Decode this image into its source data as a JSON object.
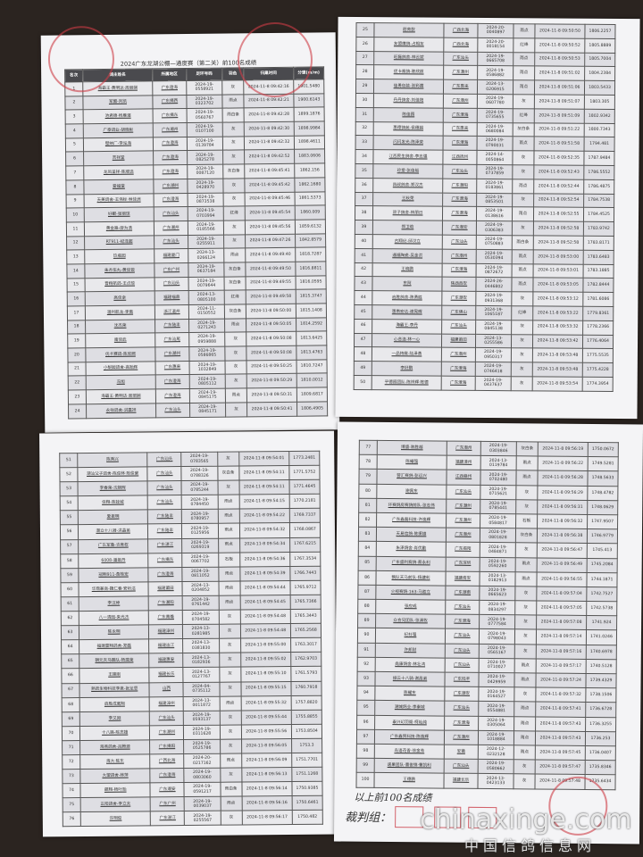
{
  "title": "2024广东龙湖公棚—通度赛（第二关）前100名成绩",
  "columns": [
    "名次",
    "鸽主姓名",
    "所属地区",
    "足环号码",
    "羽色",
    "归巢时间",
    "分速(m/m)"
  ],
  "pages": [
    {
      "rows": [
        [
          "1",
          "海霸王·黄明达·周丽娴",
          "广东澄海",
          "2024-19-0558921",
          "灰",
          "2024-11-8 09:42:16",
          "1901.5480"
        ],
        [
          "2",
          "军盟-刘凯",
          "广东揭西",
          "2024-19-0323702",
          "雨点",
          "2024-11-8 09:42:21",
          "1900.6143"
        ],
        [
          "3",
          "池君德·杨雁湄",
          "广东揭东",
          "2024-19-0560767",
          "雨白条",
          "2024-11-8 09:42:28",
          "1899.1876"
        ],
        [
          "4",
          "广泰鸽业-胡晓彬",
          "广东潮州",
          "2024-19-0107100",
          "灰",
          "2024-11-8 09:42:30",
          "1898.9984"
        ],
        [
          "5",
          "壁纳厂-李泓海",
          "广东澄海",
          "2024-19-0139784",
          "灰",
          "2024-11-8 09:42:32",
          "1898.4611"
        ],
        [
          "6",
          "吉祥堂",
          "广东澄海",
          "2024-19-0825278",
          "灰",
          "2024-11-8 09:42:52",
          "1883.0606"
        ],
        [
          "7",
          "龙凤呈祥-陈顺选",
          "广东澄海",
          "2024-19-0087120",
          "灰白条",
          "2024-11-8 09:45:41",
          "1862.156"
        ],
        [
          "8",
          "爱福堂",
          "广东潮州",
          "2024-19-0428970",
          "灰",
          "2024-11-8 09:45:42",
          "1862.1680"
        ],
        [
          "9",
          "天美鸽舍-王伟标·林佳洲",
          "广东澄海",
          "2024-19-0873538",
          "灰",
          "2024-11-8 09:45:46",
          "1861.5373"
        ],
        [
          "10",
          "好鲲-张丽琼",
          "广东汕头",
          "2024-19-0703994",
          "红绛",
          "2024-11-8 09:45:54",
          "1860.009"
        ],
        [
          "11",
          "黄金路-廖为浩",
          "广东潮州",
          "2024-19-0185566",
          "灰",
          "2024-11-8 09:45:56",
          "1859.6132"
        ],
        [
          "12",
          "RT911-纪泽超",
          "广东汕头",
          "2024-19-0255911",
          "灰",
          "2024-11-8 09:47:26",
          "1842.8579"
        ],
        [
          "13",
          "玖瓶园",
          "福建厦门",
          "2024-13-0266124",
          "雨点",
          "2024-11-8 09:49:40",
          "1818.7287"
        ],
        [
          "14",
          "朱杰伍丸-黄佳锐",
          "广东广州",
          "2024-19-0637184",
          "灰白条",
          "2024-11-8 09:49:50",
          "1816.8811"
        ],
        [
          "15",
          "晋翔航鸽-王贞琼",
          "广东汕头",
          "2024-19-0079644",
          "灰白条",
          "2024-11-8 09:49:55",
          "1816.0595"
        ],
        [
          "16",
          "高佳幸",
          "福建福鼎",
          "2024-13-0805100",
          "红绛",
          "2024-11-8 09:49:58",
          "1815.3747"
        ],
        [
          "17",
          "温州航龙-季傲",
          "浙江温州",
          "2024-11-0150552",
          "灰白条",
          "2024-11-8 09:50:00",
          "1815.1408"
        ],
        [
          "18",
          "沈杰荣",
          "广东陆丰",
          "2024-19-0271243",
          "雨点",
          "2024-11-8 09:50:05",
          "1814.2592"
        ],
        [
          "19",
          "南佳武",
          "广东汕尾",
          "2024-19-0959888",
          "灰",
          "2024-11-8 09:50:08",
          "1813.6425"
        ],
        [
          "20",
          "优卡赛鸽-陈欣照",
          "广东潮州",
          "2024-19-0586865",
          "灰",
          "2024-11-8 09:50:08",
          "1813.4763"
        ],
        [
          "21",
          "小梨园鸽舍-高贻辉",
          "广东惠来",
          "2024-19-1032849",
          "灰",
          "2024-11-8 09:50:25",
          "1810.7247"
        ],
        [
          "22",
          "冯旭",
          "广东澄海",
          "2024-19-0805112",
          "灰",
          "2024-11-8 09:50:29",
          "1810.0012"
        ],
        [
          "23",
          "海霸王·黄明达·周丽娴",
          "广东澄海",
          "2024-19-0845175",
          "雨点",
          "2024-11-8 09:50:31",
          "1809.6817"
        ],
        [
          "24",
          "永祥鸽舍-洪嘉祥",
          "广东汕头",
          "2024-19-0845171",
          "灰",
          "2024-11-8 09:50:41",
          "1806.4905"
        ]
      ]
    },
    {
      "rows": [
        [
          "25",
          "莊育欽",
          "广西北海",
          "2024-20-0040897",
          "雨点",
          "2024-11-8 09:50:50",
          "1806.2257"
        ],
        [
          "26",
          "友盟鹰鸽-占相友",
          "广西北海",
          "2024-20-0018154",
          "红绛",
          "2024-11-8 09:50:52",
          "1805.8889"
        ],
        [
          "27",
          "旺磊鸽舍-林云斌",
          "广东汕头",
          "2024-19-0665708",
          "雨点",
          "2024-11-8 09:50:53",
          "1805.7004"
        ],
        [
          "28",
          "优卡赛鸽-陈欣照",
          "广东潮州",
          "2024-19-0586882",
          "雨点",
          "2024-11-8 09:51:02",
          "1804.2384"
        ],
        [
          "29",
          "佳勇包装-张彩霞",
          "广东惠来",
          "2024-13-0206915",
          "雨点",
          "2024-11-8 09:51:06",
          "1803.5433"
        ],
        [
          "30",
          "丹丹鸽舍-刘佳阳",
          "广东潮州",
          "2024-19-0607780",
          "灰",
          "2024-11-8 09:51:07",
          "1803.305"
        ],
        [
          "31",
          "陈佳园",
          "广东澄海",
          "2024-19-0735655",
          "红绛",
          "2024-11-8 09:51:09",
          "1802.9342"
        ],
        [
          "32",
          "惠德鸽苑-侯穗娟",
          "广东惠来",
          "2024-19-0680084",
          "灰白条",
          "2024-11-8 09:51:22",
          "1800.7343"
        ],
        [
          "33",
          "闪闪发光-陈泽荣",
          "广东澄海",
          "2024-19-0790031",
          "雨点",
          "2024-11-8 09:51:58",
          "1794.481"
        ],
        [
          "34",
          "江西民生鸽舍-李志强",
          "江西抚州",
          "2024-14-0050864",
          "灰",
          "2024-11-8 09:52:35",
          "1787.9484"
        ],
        [
          "35",
          "珍爱·张佳裕",
          "广东汕头",
          "2024-19-0737859",
          "灰",
          "2024-11-8 09:52:43",
          "1786.5552"
        ],
        [
          "36",
          "四叔鸽舍-郑汉杰",
          "广东潮阳",
          "2024-19-0183861",
          "雨点",
          "2024-11-8 09:52:44",
          "1786.4875"
        ],
        [
          "37",
          "王秋荣",
          "广东澄海",
          "2024-19-0853501",
          "灰",
          "2024-11-8 09:52:54",
          "1784.7538"
        ],
        [
          "38",
          "双子鸽舍-林朋日",
          "广东澄海",
          "2024-19-0138616",
          "雨点",
          "2024-11-8 09:52:55",
          "1784.4525"
        ],
        [
          "39",
          "郑卫晗",
          "广东潮安",
          "2024-19-0306383",
          "灰",
          "2024-11-8 09:52:58",
          "1783.9742"
        ],
        [
          "40",
          "古翔纪-邱汉立",
          "广东汕头",
          "2024-19-0750883",
          "雨白条",
          "2024-11-8 09:52:58",
          "1783.8171"
        ],
        [
          "41",
          "通福陶瓷-吴金洪",
          "广东潮州",
          "2024-19-0530394",
          "雨点",
          "2024-11-8 09:53:00",
          "1783.6483"
        ],
        [
          "42",
          "王晓鹏",
          "广东澄海",
          "2024-19-0872672",
          "雨点",
          "2024-11-8 09:53:01",
          "1783.1885"
        ],
        [
          "43",
          "东阿",
          "陕西西安",
          "2024-26-0446802",
          "雨点",
          "2024-11-8 09:53:05",
          "1782.8444"
        ],
        [
          "44",
          "启胜鸽舍-陈勇胜",
          "广东潮安",
          "2024-19-0931368",
          "灰",
          "2024-11-8 09:53:12",
          "1781.6086"
        ],
        [
          "45",
          "惠南宏达-谢晃辉",
          "广东佛山",
          "2024-19-1065187",
          "红绛",
          "2024-11-8 09:53:22",
          "1779.8361"
        ],
        [
          "46",
          "海霸王-李丹",
          "广东汕头",
          "2024-19-0845138",
          "灰",
          "2024-11-8 09:53:32",
          "1778.2366"
        ],
        [
          "47",
          "心合连-林一心",
          "福建莆田",
          "2024-13-0255586",
          "灰",
          "2024-11-8 09:53:42",
          "1776.4064"
        ],
        [
          "48",
          "一品特赛-陆泽勇",
          "广东潮州",
          "2024-19-0950317",
          "灰",
          "2024-11-8 09:53:48",
          "1775.5535"
        ],
        [
          "49",
          "李好鹏",
          "广东澄海",
          "2024-19-0746418",
          "灰",
          "2024-11-8 09:53:48",
          "1775.4228"
        ],
        [
          "50",
          "平德园团队-陈祥辉·陈德",
          "广东澄海",
          "2024-19-0437637",
          "灰",
          "2024-11-8 09:53:54",
          "1774.3954"
        ]
      ]
    },
    {
      "rows": [
        [
          "51",
          "陈秀兴",
          "广东汕头",
          "2024-19-0783565",
          "灰",
          "2024-11-8 09:54:01",
          "1773.2481"
        ],
        [
          "52",
          "潮汕父子鸽舍-陈俊林·陈俊豪",
          "广东汕头",
          "2024-19-0788326",
          "灰白条",
          "2024-11-8 09:54:11",
          "1771.5752"
        ],
        [
          "53",
          "李春荣-沈钢辉",
          "广东汕头",
          "2024-19-0785244",
          "灰",
          "2024-11-8 09:54:11",
          "1771.4645"
        ],
        [
          "54",
          "佳翔-陈铨城",
          "广东汕头",
          "2024-19-0784450",
          "雨点",
          "2024-11-8 09:54:15",
          "1770.2181"
        ],
        [
          "55",
          "爱振明",
          "广东陆丰",
          "2024-19-0780957",
          "雨点",
          "2024-11-8 09:54:22",
          "1769.7337"
        ],
        [
          "56",
          "潮立十八骑-洪晶弟",
          "广东陆丰",
          "2024-19-0125956",
          "雨点",
          "2024-11-8 09:54:32",
          "1768.0867"
        ],
        [
          "57",
          "广东军鲁-许育权",
          "广东湛江",
          "2024-19-0269319",
          "雨点",
          "2024-11-8 09:54:34",
          "1767.6215"
        ],
        [
          "58",
          "6008-潘振丹",
          "广东揭东",
          "2024-19-0067702",
          "石板",
          "2024-11-8 09:54:36",
          "1767.3534"
        ],
        [
          "59",
          "冠翔911-詹桂宏",
          "广东澄海",
          "2024-19-0811052",
          "雨点",
          "2024-11-8 09:54:39",
          "1766.7443"
        ],
        [
          "60",
          "华鼎兼商-魏仁春·安圻沽",
          "福建莆田",
          "2024-13-0204852",
          "雨点",
          "2024-11-8 09:54:44",
          "1765.9712"
        ],
        [
          "61",
          "李汉坤",
          "广东潮阳",
          "2024-19-0761442",
          "雨点",
          "2024-11-8 09:54:45",
          "1765.7366"
        ],
        [
          "62",
          "八一清园-朱光杰",
          "广东南雄",
          "2024-19-0704582",
          "灰",
          "2024-11-8 09:54:48",
          "1765.3443"
        ],
        [
          "63",
          "陈永明",
          "福建漳州",
          "2024-13-0281985",
          "灰",
          "2024-11-8 09:54:48",
          "1765.2568"
        ],
        [
          "64",
          "福建雷翔鸽舍-郑磊",
          "福建连江",
          "2024-13-0381830",
          "灰",
          "2024-11-8 09:55:00",
          "1763.3017"
        ],
        [
          "65",
          "朝元天马鹏队-杨建荣",
          "福建惠安",
          "2024-13-0182936",
          "灰",
          "2024-11-8 09:55:02",
          "1762.9703"
        ],
        [
          "66",
          "王建刚",
          "福建长乐",
          "2024-13-0127767",
          "灰",
          "2024-11-8 09:55:10",
          "1761.5793"
        ],
        [
          "67",
          "熟跃生物科技李泉-张龙思",
          "山西",
          "2024-04-0735112",
          "灰",
          "2024-11-8 09:55:15",
          "1760.7918"
        ],
        [
          "68",
          "启胜成鹰翔",
          "福建漳州",
          "2024-13-0011872",
          "雨点",
          "2024-11-8 09:55:32",
          "1757.8820"
        ],
        [
          "69",
          "李又刚",
          "广东汕头",
          "2024-19-0593137",
          "灰",
          "2024-11-8 09:55:44",
          "1755.8855"
        ],
        [
          "70",
          "十八路-陈志雄",
          "广东潮州",
          "2024-19-0311628",
          "灰",
          "2024-11-8 09:55:56",
          "1753.8504"
        ],
        [
          "71",
          "海燕鸽舍-吕腾源",
          "广东揭阳",
          "2024-19-0525786",
          "灰",
          "2024-11-8 09:56:05",
          "1753.3"
        ],
        [
          "72",
          "海大·陈东",
          "广西北海",
          "2024-20-0217162",
          "雨点",
          "2024-11-8 09:56:09",
          "1751.7701"
        ],
        [
          "73",
          "大望鸽舍-林萍",
          "广东澄海",
          "2024-19-0803060",
          "灰",
          "2024-11-8 09:56:13",
          "1751.1268"
        ],
        [
          "74",
          "飙翔-杨叶贻",
          "广东潮安",
          "2024-19-0591217",
          "雨白条",
          "2024-11-8 09:56:14",
          "1750.9385"
        ],
        [
          "75",
          "正阳鸽舍-李立夫",
          "广东广州",
          "2024-19-0039037",
          "雨点",
          "2024-11-8 09:56:16",
          "1750.6461"
        ],
        [
          "76",
          "许明俊",
          "广东湛江",
          "2024-19-0255567",
          "灰",
          "2024-11-8 09:56:17",
          "1750.482"
        ]
      ]
    },
    {
      "rows": [
        [
          "77",
          "博盛-陈胜越",
          "广东潮州",
          "2024-19-0303846",
          "灰白条",
          "2024-11-8 09:56:19",
          "1750.0672"
        ],
        [
          "78",
          "陈耀强",
          "福建漳州",
          "2024-13-0119784",
          "雨点",
          "2024-11-8 09:56:22",
          "1749.5281"
        ],
        [
          "79",
          "营汇赛鸽-彭远兴",
          "江西赣州",
          "2024-19-0702480",
          "雨点",
          "2024-11-8 09:56:28",
          "1748.5633"
        ],
        [
          "80",
          "谢佩东",
          "广东汕头",
          "2024-19-0715621",
          "灰",
          "2024-11-8 09:56:29",
          "1748.4782"
        ],
        [
          "81",
          "环赛鸽房赛鸽前队-张志伟",
          "广东潮州",
          "2024-19-0785441",
          "灰",
          "2024-11-8 09:56:31",
          "1748.0629"
        ],
        [
          "82",
          "广东鑫磊科技-许逸辉",
          "广东潮州",
          "2024-19-0584817",
          "石板",
          "2024-11-8 09:56:32",
          "1747.9507"
        ],
        [
          "83",
          "天易信鸽-陈振雄",
          "广东潮州",
          "2024-19-0801828",
          "灰白条",
          "2024-11-8 09:56:38",
          "1746.9779"
        ],
        [
          "84",
          "朱泽鸽舍-肖优勤",
          "广东揭阳",
          "2024-19-0484871",
          "灰",
          "2024-11-8 09:56:47",
          "1745.413"
        ],
        [
          "85",
          "广东盛利赛鸽-蔡永利",
          "广东深圳",
          "2024-19-0592260",
          "雨点",
          "2024-11-8 09:56:49",
          "1745.2084"
        ],
        [
          "86",
          "飘队天马前队-杨建利",
          "福建南安",
          "2024-13-0182913",
          "雨点",
          "2024-11-8 09:56:55",
          "1744.1871"
        ],
        [
          "87",
          "火视赛鸽-163-马胜立",
          "广东潮南",
          "2024-19-0665623",
          "灰",
          "2024-11-8 09:57:04",
          "1742.7527"
        ],
        [
          "88",
          "张应成",
          "广东汕头",
          "2024-19-0834297",
          "灰",
          "2024-11-8 09:57:05",
          "1742.5738"
        ],
        [
          "89",
          "众合兄团队-张清牧",
          "广东澄海",
          "2024-19-0777584",
          "灰",
          "2024-11-8 09:57:08",
          "1741.924"
        ],
        [
          "90",
          "纪杜强",
          "广东汕头",
          "2024-19-0798043",
          "灰",
          "2024-11-8 09:57:14",
          "1741.0246"
        ],
        [
          "91",
          "许邦财",
          "广东汕头",
          "2024-19-0565167",
          "灰",
          "2024-11-8 09:57:16",
          "1740.6978"
        ],
        [
          "92",
          "堯康鸽舍-林壮鸿",
          "广东汕头",
          "2024-19-0710027",
          "雨点",
          "2024-11-8 09:57:17",
          "1740.5128"
        ],
        [
          "93",
          "振云十八骑-谢昌弟",
          "广东陆丰",
          "2024-19-0429959",
          "雨点",
          "2024-11-8 09:57:24",
          "1739.4329"
        ],
        [
          "94",
          "陈耀东",
          "广东潮安",
          "2024-19-0164527",
          "灰",
          "2024-11-8 09:57:32",
          "1738.1506"
        ],
        [
          "95",
          "潮城鸽业-李泰城",
          "广东汕头",
          "2024-19-0554881",
          "雨点",
          "2024-11-8 09:57:41",
          "1736.6728"
        ],
        [
          "96",
          "泰兴幻羽阁-柯灿纯",
          "广东澄海",
          "2024-19-0305064",
          "雨点",
          "2024-11-8 09:57:43",
          "1736.3255"
        ],
        [
          "97",
          "广东鑫贸科技-陈逸辉",
          "广东潮州",
          "2024-19-1018884",
          "雨点",
          "2024-11-8 09:57:43",
          "1736.253"
        ],
        [
          "98",
          "鸟语花香-徐金芳",
          "安徽",
          "2024-12-0232128",
          "雨点",
          "2024-11-8 09:57:45",
          "1736.0407"
        ],
        [
          "99",
          "速果团队-曹俊锦·曹凯利",
          "广东汕头",
          "2024-19-0580662",
          "灰",
          "2024-11-8 09:57:47",
          "1735.8346"
        ],
        [
          "100",
          "王德鹏",
          "福建长乐",
          "2024-13-0423133",
          "灰",
          "2024-11-8 09:57:48",
          "1735.6434"
        ]
      ]
    }
  ],
  "footer": {
    "note": "以上前100名成绩",
    "referee": "裁判组："
  },
  "watermark": {
    "domain": "chinaxinge.com",
    "name": "中国信鸽信息网"
  },
  "colors": {
    "header_bg": "#4a4a4e",
    "stamp": "#cd3c46",
    "background": "#2b2420"
  }
}
